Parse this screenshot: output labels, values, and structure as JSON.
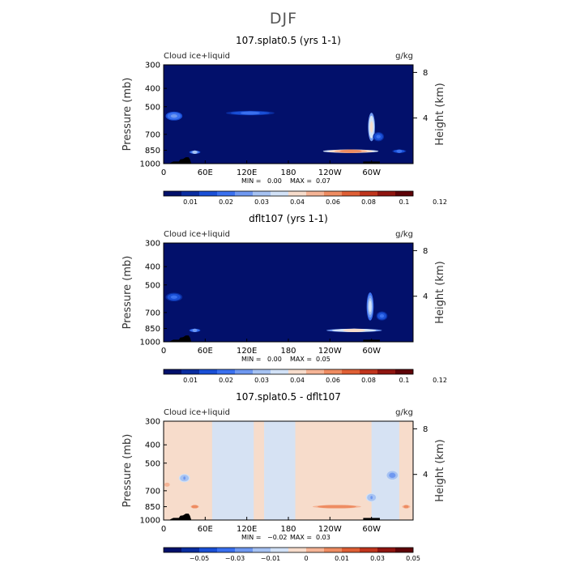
{
  "figure": {
    "title": "DJF"
  },
  "chart_data": [
    {
      "type": "heatmap",
      "title": "107.splat0.5 (yrs 1-1)",
      "variable_label": "Cloud ice+liquid",
      "units": "g/kg",
      "ylabel": "Pressure (mb)",
      "y2label": "Height (km)",
      "x_ticks": [
        "0",
        "60E",
        "120E",
        "180",
        "120W",
        "60W"
      ],
      "y_ticks": [
        "300",
        "400",
        "500",
        "700",
        "850",
        "1000"
      ],
      "y2_ticks": [
        "8",
        "4"
      ],
      "stats": {
        "min_label": "MIN =",
        "min": "0.00",
        "max_label": "MAX =",
        "max": "0.07"
      },
      "colorbar": {
        "colors": [
          "#02106b",
          "#0a2da0",
          "#1a4fd6",
          "#3a70ef",
          "#6f98f0",
          "#a6c2f2",
          "#d2e2f7",
          "#f7dccb",
          "#f5b496",
          "#ee8c62",
          "#df5f35",
          "#c0351d",
          "#8f1510",
          "#5e0308"
        ],
        "labels": [
          "0.01",
          "0.02",
          "0.03",
          "0.04",
          "0.06",
          "0.08",
          "0.1",
          "0.12"
        ]
      },
      "features": [
        {
          "lon": 270,
          "p": 860,
          "value": 0.07,
          "lon_width": 40,
          "p_width": 35
        },
        {
          "lon": 300,
          "p": 640,
          "value": 0.05,
          "lon_width": 5,
          "p_width": 220
        },
        {
          "lon": 15,
          "p": 560,
          "value": 0.025,
          "lon_width": 12,
          "p_width": 60
        },
        {
          "lon": 45,
          "p": 870,
          "value": 0.03,
          "lon_width": 8,
          "p_width": 30
        },
        {
          "lon": 125,
          "p": 540,
          "value": 0.02,
          "lon_width": 35,
          "p_width": 30
        },
        {
          "lon": 340,
          "p": 860,
          "value": 0.02,
          "lon_width": 10,
          "p_width": 30
        },
        {
          "lon": 310,
          "p": 720,
          "value": 0.02,
          "lon_width": 8,
          "p_width": 80
        }
      ]
    },
    {
      "type": "heatmap",
      "title": "dflt107 (yrs 1-1)",
      "variable_label": "Cloud ice+liquid",
      "units": "g/kg",
      "ylabel": "Pressure (mb)",
      "y2label": "Height (km)",
      "x_ticks": [
        "0",
        "60E",
        "120E",
        "180",
        "120W",
        "60W"
      ],
      "y_ticks": [
        "300",
        "400",
        "500",
        "700",
        "850",
        "1000"
      ],
      "y2_ticks": [
        "8",
        "4"
      ],
      "stats": {
        "min_label": "MIN =",
        "min": "0.00",
        "max_label": "MAX =",
        "max": "0.05"
      },
      "colorbar": {
        "colors": [
          "#02106b",
          "#0a2da0",
          "#1a4fd6",
          "#3a70ef",
          "#6f98f0",
          "#a6c2f2",
          "#d2e2f7",
          "#f7dccb",
          "#f5b496",
          "#ee8c62",
          "#df5f35",
          "#c0351d",
          "#8f1510",
          "#5e0308"
        ],
        "labels": [
          "0.01",
          "0.02",
          "0.03",
          "0.04",
          "0.06",
          "0.08",
          "0.1",
          "0.12"
        ]
      },
      "features": [
        {
          "lon": 275,
          "p": 870,
          "value": 0.05,
          "lon_width": 40,
          "p_width": 35
        },
        {
          "lon": 298,
          "p": 650,
          "value": 0.04,
          "lon_width": 5,
          "p_width": 220
        },
        {
          "lon": 15,
          "p": 580,
          "value": 0.02,
          "lon_width": 12,
          "p_width": 60
        },
        {
          "lon": 45,
          "p": 870,
          "value": 0.025,
          "lon_width": 8,
          "p_width": 30
        },
        {
          "lon": 315,
          "p": 730,
          "value": 0.02,
          "lon_width": 8,
          "p_width": 80
        }
      ]
    },
    {
      "type": "heatmap",
      "title": "107.splat0.5 - dflt107",
      "variable_label": "Cloud ice+liquid",
      "units": "g/kg",
      "ylabel": "Pressure (mb)",
      "y2label": "Height (km)",
      "x_ticks": [
        "0",
        "60E",
        "120E",
        "180",
        "120W",
        "60W"
      ],
      "y_ticks": [
        "300",
        "400",
        "500",
        "700",
        "850",
        "1000"
      ],
      "y2_ticks": [
        "8",
        "4"
      ],
      "stats": {
        "min_label": "MIN =",
        "min": "−0.02",
        "max_label": "MAX =",
        "max": "0.03"
      },
      "colorbar": {
        "colors": [
          "#02106b",
          "#0a2da0",
          "#1a4fd6",
          "#3a70ef",
          "#6f98f0",
          "#a6c2f2",
          "#d2e2f7",
          "#f7dccb",
          "#f5b496",
          "#ee8c62",
          "#df5f35",
          "#c0351d",
          "#8f1510",
          "#5e0308"
        ],
        "labels": [
          "−0.05",
          "−0.03",
          "−0.01",
          "0",
          "0.01",
          "0.03",
          "0.05"
        ]
      },
      "features": [
        {
          "lon": 250,
          "p": 850,
          "value": 0.02,
          "lon_width": 35,
          "p_width": 25
        },
        {
          "lon": 45,
          "p": 850,
          "value": 0.02,
          "lon_width": 6,
          "p_width": 25
        },
        {
          "lon": 350,
          "p": 850,
          "value": 0.015,
          "lon_width": 6,
          "p_width": 25
        },
        {
          "lon": 5,
          "p": 650,
          "value": 0.01,
          "lon_width": 5,
          "p_width": 40
        },
        {
          "lon": 30,
          "p": 600,
          "value": -0.01,
          "lon_width": 8,
          "p_width": 60
        },
        {
          "lon": 330,
          "p": 580,
          "value": -0.015,
          "lon_width": 8,
          "p_width": 60
        },
        {
          "lon": 300,
          "p": 760,
          "value": -0.01,
          "lon_width": 8,
          "p_width": 80
        }
      ]
    }
  ]
}
